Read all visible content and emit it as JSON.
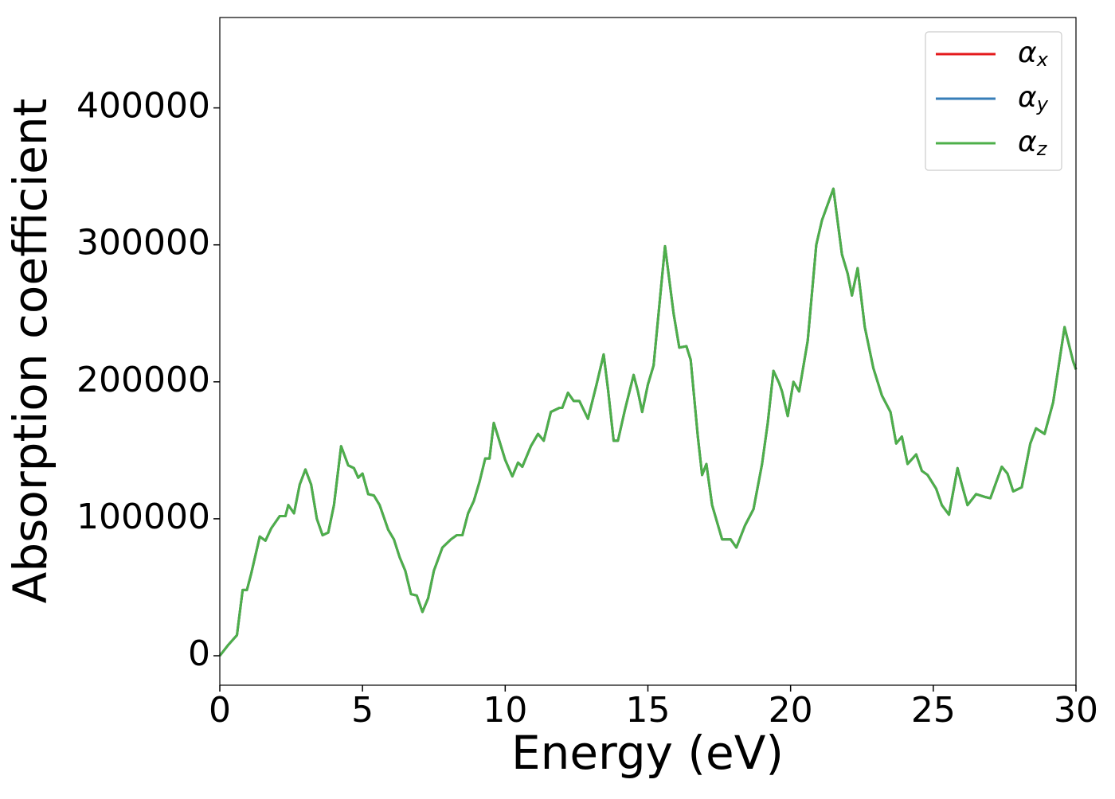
{
  "chart_data": {
    "type": "line",
    "xlabel": "Energy (eV)",
    "ylabel": "Absorption coefficient",
    "x": [
      0,
      0.3,
      0.6,
      0.8,
      0.95,
      1.1,
      1.4,
      1.6,
      1.8,
      2.1,
      2.3,
      2.4,
      2.6,
      2.8,
      3.0,
      3.2,
      3.4,
      3.6,
      3.8,
      4.0,
      4.25,
      4.5,
      4.7,
      4.85,
      5.0,
      5.2,
      5.4,
      5.6,
      5.9,
      6.1,
      6.3,
      6.5,
      6.7,
      6.9,
      7.1,
      7.3,
      7.5,
      7.8,
      8.1,
      8.3,
      8.5,
      8.7,
      8.9,
      9.1,
      9.3,
      9.45,
      9.6,
      9.75,
      10.0,
      10.25,
      10.45,
      10.6,
      10.9,
      11.15,
      11.35,
      11.6,
      11.9,
      12.0,
      12.2,
      12.4,
      12.6,
      12.9,
      13.2,
      13.45,
      13.6,
      13.8,
      13.95,
      14.2,
      14.5,
      14.65,
      14.8,
      15.0,
      15.2,
      15.6,
      15.9,
      16.1,
      16.35,
      16.5,
      16.75,
      16.9,
      17.05,
      17.25,
      17.6,
      17.9,
      18.1,
      18.4,
      18.7,
      19.0,
      19.2,
      19.4,
      19.6,
      19.7,
      19.9,
      20.1,
      20.3,
      20.6,
      20.9,
      21.1,
      21.5,
      21.8,
      22.0,
      22.15,
      22.35,
      22.6,
      22.9,
      23.2,
      23.5,
      23.7,
      23.9,
      24.1,
      24.4,
      24.6,
      24.8,
      25.1,
      25.3,
      25.55,
      25.85,
      26.0,
      26.2,
      26.5,
      26.8,
      27.0,
      27.4,
      27.6,
      27.8,
      28.1,
      28.4,
      28.6,
      28.9,
      29.2,
      29.6,
      29.9,
      30.0
    ],
    "series": [
      {
        "name": "αx",
        "color": "#e41a1c",
        "values": [
          0,
          8000,
          15000,
          48000,
          48000,
          60000,
          87000,
          84000,
          93000,
          102000,
          102000,
          110000,
          104000,
          125000,
          136000,
          125000,
          100000,
          88000,
          90000,
          110000,
          153000,
          139000,
          137000,
          130000,
          133000,
          118000,
          117000,
          110000,
          92000,
          85000,
          72000,
          62000,
          45000,
          44000,
          32000,
          42000,
          62000,
          79000,
          85000,
          88000,
          88000,
          104000,
          113000,
          127000,
          144000,
          144000,
          170000,
          160000,
          143000,
          131000,
          141000,
          138000,
          153000,
          162000,
          157000,
          178000,
          181000,
          181000,
          192000,
          186000,
          186000,
          173000,
          198000,
          220000,
          195000,
          157000,
          157000,
          180000,
          205000,
          193000,
          178000,
          198000,
          212000,
          299000,
          250000,
          225000,
          226000,
          216000,
          160000,
          132000,
          140000,
          110000,
          85000,
          85000,
          79000,
          95000,
          107000,
          140000,
          170000,
          208000,
          199000,
          193000,
          175000,
          200000,
          193000,
          230000,
          300000,
          318000,
          341000,
          293000,
          279000,
          263000,
          283000,
          240000,
          210000,
          190000,
          178000,
          155000,
          160000,
          140000,
          147000,
          135000,
          132000,
          122000,
          110000,
          103000,
          137000,
          125000,
          110000,
          118000,
          116000,
          115000,
          138000,
          133000,
          120000,
          123000,
          155000,
          166000,
          162000,
          185000,
          240000,
          215000,
          209000
        ]
      },
      {
        "name": "αy",
        "color": "#377eb8",
        "values": [
          0,
          8000,
          15000,
          48000,
          48000,
          60000,
          87000,
          84000,
          93000,
          102000,
          102000,
          110000,
          104000,
          125000,
          136000,
          125000,
          100000,
          88000,
          90000,
          110000,
          153000,
          139000,
          137000,
          130000,
          133000,
          118000,
          117000,
          110000,
          92000,
          85000,
          72000,
          62000,
          45000,
          44000,
          32000,
          42000,
          62000,
          79000,
          85000,
          88000,
          88000,
          104000,
          113000,
          127000,
          144000,
          144000,
          170000,
          160000,
          143000,
          131000,
          141000,
          138000,
          153000,
          162000,
          157000,
          178000,
          181000,
          181000,
          192000,
          186000,
          186000,
          173000,
          198000,
          220000,
          195000,
          157000,
          157000,
          180000,
          205000,
          193000,
          178000,
          198000,
          212000,
          299000,
          250000,
          225000,
          226000,
          216000,
          160000,
          132000,
          140000,
          110000,
          85000,
          85000,
          79000,
          95000,
          107000,
          140000,
          170000,
          208000,
          199000,
          193000,
          175000,
          200000,
          193000,
          230000,
          300000,
          318000,
          341000,
          293000,
          279000,
          263000,
          283000,
          240000,
          210000,
          190000,
          178000,
          155000,
          160000,
          140000,
          147000,
          135000,
          132000,
          122000,
          110000,
          103000,
          137000,
          125000,
          110000,
          118000,
          116000,
          115000,
          138000,
          133000,
          120000,
          123000,
          155000,
          166000,
          162000,
          185000,
          240000,
          215000,
          209000
        ]
      },
      {
        "name": "αz",
        "color": "#4daf4a",
        "values": [
          0,
          8000,
          15000,
          48000,
          48000,
          60000,
          87000,
          84000,
          93000,
          102000,
          102000,
          110000,
          104000,
          125000,
          136000,
          125000,
          100000,
          88000,
          90000,
          110000,
          153000,
          139000,
          137000,
          130000,
          133000,
          118000,
          117000,
          110000,
          92000,
          85000,
          72000,
          62000,
          45000,
          44000,
          32000,
          42000,
          62000,
          79000,
          85000,
          88000,
          88000,
          104000,
          113000,
          127000,
          144000,
          144000,
          170000,
          160000,
          143000,
          131000,
          141000,
          138000,
          153000,
          162000,
          157000,
          178000,
          181000,
          181000,
          192000,
          186000,
          186000,
          173000,
          198000,
          220000,
          195000,
          157000,
          157000,
          180000,
          205000,
          193000,
          178000,
          198000,
          212000,
          299000,
          250000,
          225000,
          226000,
          216000,
          160000,
          132000,
          140000,
          110000,
          85000,
          85000,
          79000,
          95000,
          107000,
          140000,
          170000,
          208000,
          199000,
          193000,
          175000,
          200000,
          193000,
          230000,
          300000,
          318000,
          341000,
          293000,
          279000,
          263000,
          283000,
          240000,
          210000,
          190000,
          178000,
          155000,
          160000,
          140000,
          147000,
          135000,
          132000,
          122000,
          110000,
          103000,
          137000,
          125000,
          110000,
          118000,
          116000,
          115000,
          138000,
          133000,
          120000,
          123000,
          155000,
          166000,
          162000,
          185000,
          240000,
          215000,
          209000
        ]
      }
    ],
    "xlim": [
      0,
      30
    ],
    "xticks": [
      0,
      5,
      10,
      15,
      20,
      25,
      30
    ],
    "ylim": [
      -21500,
      466000
    ],
    "yticks": [
      0,
      100000,
      200000,
      300000,
      400000
    ],
    "legend": "upper right"
  }
}
